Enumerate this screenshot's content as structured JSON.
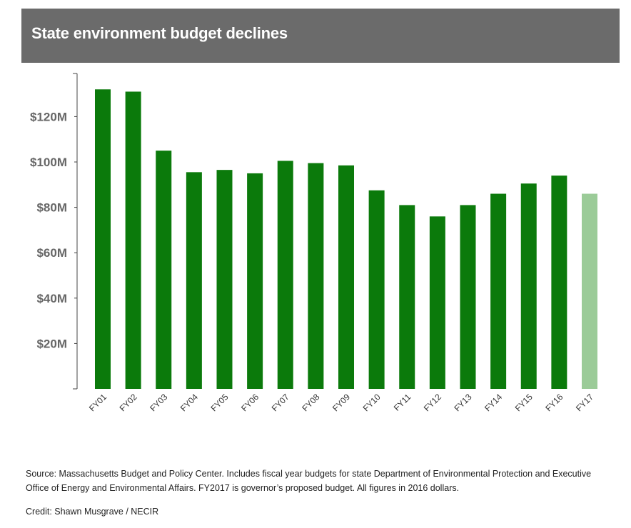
{
  "header": {
    "title": "State environment budget declines"
  },
  "chart_data": {
    "type": "bar",
    "categories": [
      "FY01",
      "FY02",
      "FY03",
      "FY04",
      "FY05",
      "FY06",
      "FY07",
      "FY08",
      "FY09",
      "FY10",
      "FY11",
      "FY12",
      "FY13",
      "FY14",
      "FY15",
      "FY16",
      "FY17"
    ],
    "values": [
      132,
      131,
      105,
      95.5,
      96.5,
      95,
      100.5,
      99.5,
      98.5,
      87.5,
      81,
      76,
      81,
      86,
      90.5,
      94,
      86
    ],
    "ylim": [
      0,
      139
    ],
    "yticks": [
      20,
      40,
      60,
      80,
      100,
      120
    ],
    "ytick_labels": [
      "$20M",
      "$40M",
      "$60M",
      "$80M",
      "$100M",
      "$120M"
    ],
    "colors": {
      "actual": "#0b7a0b",
      "proposed": "#9bcb98"
    },
    "proposed_category": "FY17",
    "grid": false
  },
  "footer": {
    "source": "Source: Massachusetts Budget and Policy Center. Includes fiscal year budgets for state Department of Environmental Protection and Executive Office of Energy and Environmental Affairs. FY2017 is governor’s proposed budget. All figures in 2016 dollars.",
    "credit": "Credit: Shawn Musgrave / NECIR"
  }
}
